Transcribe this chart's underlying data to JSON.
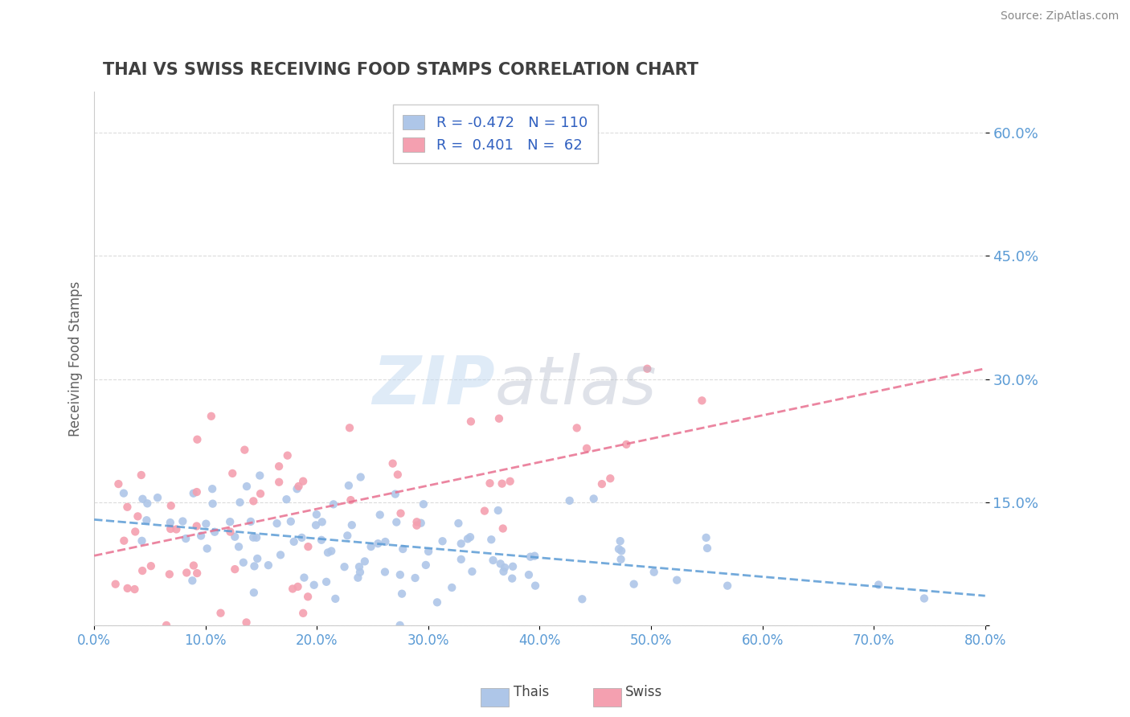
{
  "title": "THAI VS SWISS RECEIVING FOOD STAMPS CORRELATION CHART",
  "source": "Source: ZipAtlas.com",
  "xlabel": "",
  "ylabel": "Receiving Food Stamps",
  "xlim": [
    0.0,
    0.8
  ],
  "ylim": [
    0.0,
    0.65
  ],
  "yticks": [
    0.0,
    0.15,
    0.3,
    0.45,
    0.6
  ],
  "ytick_labels": [
    "",
    "15.0%",
    "30.0%",
    "45.0%",
    "60.0%"
  ],
  "xticks": [
    0.0,
    0.1,
    0.2,
    0.3,
    0.4,
    0.5,
    0.6,
    0.7,
    0.8
  ],
  "xtick_labels": [
    "0.0%",
    "10.0%",
    "20.0%",
    "30.0%",
    "40.0%",
    "50.0%",
    "60.0%",
    "70.0%",
    "80.0%"
  ],
  "thai_R": -0.472,
  "thai_N": 110,
  "swiss_R": 0.401,
  "swiss_N": 62,
  "thai_color": "#aec6e8",
  "swiss_color": "#f4a0b0",
  "thai_line_color": "#5b9bd5",
  "swiss_line_color": "#e87090",
  "grid_color": "#cccccc",
  "title_color": "#404040",
  "axis_label_color": "#5b9bd5",
  "tick_color": "#5b9bd5",
  "watermark": "ZIPatlas",
  "watermark_zip_color": "#c0d8f0",
  "watermark_atlas_color": "#a0a0a0",
  "background_color": "#ffffff",
  "thai_seed": 42,
  "swiss_seed": 99
}
